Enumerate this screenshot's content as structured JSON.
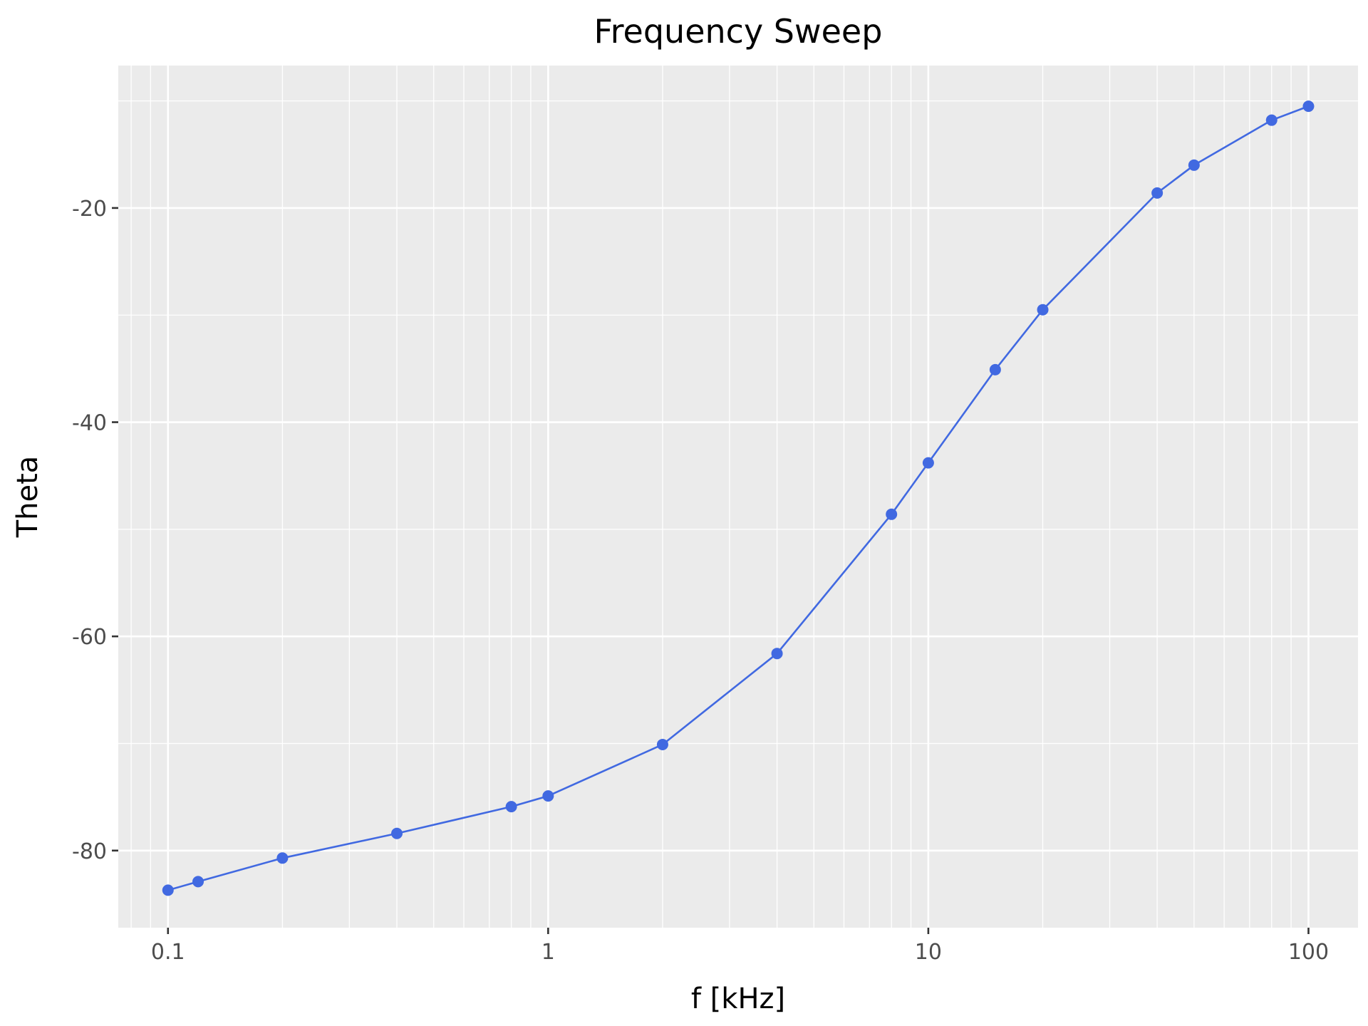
{
  "chart_data": {
    "type": "line",
    "title": "Frequency Sweep",
    "xlabel": "f [kHz]",
    "ylabel": "Theta",
    "x_scale": "log",
    "xlim": [
      0.074,
      135
    ],
    "ylim": [
      -87.2,
      -6.7
    ],
    "x_ticks": [
      {
        "value": 0.1,
        "label": "0.1"
      },
      {
        "value": 1,
        "label": "1"
      },
      {
        "value": 10,
        "label": "10"
      },
      {
        "value": 100,
        "label": "100"
      }
    ],
    "y_ticks": [
      {
        "value": -80,
        "label": "-80"
      },
      {
        "value": -60,
        "label": "-60"
      },
      {
        "value": -40,
        "label": "-40"
      },
      {
        "value": -20,
        "label": "-20"
      }
    ],
    "grid": true,
    "legend": "none",
    "colors": {
      "panel": "#ebebeb",
      "series": "#4169e1"
    },
    "series": [
      {
        "x": [
          0.1,
          0.12,
          0.2,
          0.4,
          0.8,
          1,
          2,
          4,
          8,
          10,
          15,
          20,
          40,
          50,
          80,
          100
        ],
        "y": [
          -83.7,
          -82.9,
          -80.7,
          -78.4,
          -75.9,
          -74.9,
          -70.1,
          -61.6,
          -48.6,
          -43.8,
          -35.1,
          -29.5,
          -18.6,
          -16.0,
          -11.8,
          -10.5
        ]
      }
    ]
  }
}
